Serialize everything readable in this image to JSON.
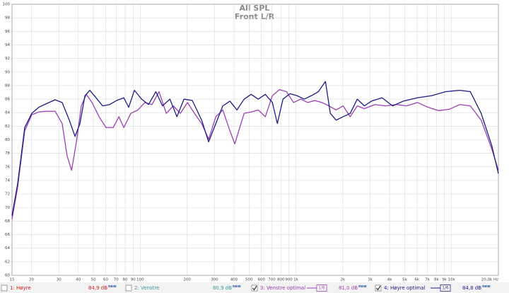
{
  "chart_data": {
    "type": "line",
    "title": "All SPL",
    "subtitle": "Front L/R",
    "xscale": "log",
    "xlim": [
      15,
      20000
    ],
    "ylim": [
      60,
      100
    ],
    "grid": true,
    "xticks": [
      15,
      20,
      30,
      40,
      50,
      60,
      70,
      80,
      90,
      100,
      200,
      300,
      400,
      500,
      600,
      700,
      800,
      900,
      {
        "value": 1000,
        "label": "1k"
      },
      {
        "value": 2000,
        "label": "2k"
      },
      {
        "value": 3000,
        "label": "3k"
      },
      {
        "value": 4000,
        "label": "4k"
      },
      {
        "value": 5000,
        "label": "5k"
      },
      {
        "value": 6000,
        "label": "6k"
      },
      {
        "value": 7000,
        "label": "7k"
      },
      {
        "value": 8000,
        "label": "8k"
      },
      {
        "value": 9000,
        "label": "9k"
      },
      {
        "value": 10000,
        "label": "10k"
      },
      {
        "value": 20000,
        "label": "20,0k Hz"
      }
    ],
    "yticks": [
      60,
      62,
      64,
      66,
      68,
      70,
      72,
      74,
      76,
      78,
      80,
      82,
      84,
      86,
      88,
      90,
      92,
      94,
      96,
      98,
      100
    ],
    "series": [
      {
        "name": "1: Høyre",
        "color": "#d02020",
        "checked": false,
        "level": "84,9 dB",
        "badge": "new"
      },
      {
        "name": "2: Venstre",
        "color": "#3a9aa8",
        "checked": false,
        "level": "80,9 dB",
        "badge": "new"
      },
      {
        "name": "3: Venstre optimal",
        "color": "#9b3fb5",
        "checked": true,
        "smoothing": "1/6",
        "level": "81,0 dB",
        "badge": "new",
        "x": [
          15,
          16.3,
          18.1,
          20.1,
          22.3,
          24.8,
          28.4,
          31.5,
          33.9,
          36.2,
          38.9,
          41.8,
          45.0,
          49.0,
          54.4,
          60.3,
          67.0,
          72.9,
          78.4,
          87,
          96.6,
          107,
          119,
          132,
          147,
          163,
          181,
          201,
          223,
          248,
          275,
          306,
          339,
          377,
          405,
          465,
          516,
          573,
          636,
          706,
          784,
          870,
          966,
          1073,
          1191,
          1323,
          1469,
          1630,
          1812,
          2011,
          2233,
          2480,
          2753,
          3220,
          3768,
          4410,
          5154,
          6038,
          7062,
          8262,
          9666,
          11300,
          13200,
          15500,
          18100,
          20000
        ],
        "values": [
          68.3,
          73.0,
          81.3,
          83.7,
          84.1,
          84.2,
          84.2,
          82.4,
          77.6,
          75.5,
          79.7,
          85.0,
          86.7,
          85.5,
          83.4,
          81.8,
          81.8,
          83.4,
          81.8,
          83.9,
          84.4,
          85.5,
          85.2,
          87.1,
          83.9,
          85.0,
          83.9,
          85.5,
          83.9,
          82.4,
          80.1,
          83.4,
          84.4,
          81.3,
          79.4,
          83.9,
          84.1,
          84.4,
          83.4,
          86.5,
          87.4,
          87.1,
          85.5,
          86.0,
          85.5,
          85.8,
          85.5,
          85.0,
          84.4,
          85.0,
          83.4,
          85.0,
          84.6,
          85.2,
          85.0,
          85.2,
          85.0,
          85.5,
          84.8,
          84.3,
          84.5,
          85.2,
          85.0,
          82.9,
          78.7,
          75.5
        ]
      },
      {
        "name": "4: Høyre optimal",
        "color": "#1c1c82",
        "checked": true,
        "smoothing": "1/6",
        "level": "84,8 dB",
        "badge": "new",
        "x": [
          15,
          16.3,
          18.1,
          20.1,
          22.3,
          24.8,
          28.4,
          31.5,
          35.0,
          38.1,
          41.0,
          44.1,
          47.4,
          51.6,
          57.3,
          63.6,
          70.6,
          78.4,
          84.3,
          91.7,
          102,
          113,
          126,
          139,
          155,
          172,
          191,
          216,
          248,
          275,
          306,
          339,
          377,
          418,
          465,
          516,
          573,
          636,
          706,
          760,
          826,
          917,
          1018,
          1131,
          1256,
          1394,
          1548,
          1664,
          1812,
          2011,
          2233,
          2480,
          2753,
          3056,
          3576,
          4181,
          4896,
          6038,
          7437,
          9165,
          11300,
          13200,
          15500,
          18100,
          20000
        ],
        "values": [
          68.8,
          73.5,
          81.8,
          83.9,
          84.8,
          85.3,
          85.9,
          85.5,
          82.9,
          80.5,
          82.4,
          86.5,
          87.3,
          86.3,
          85.0,
          85.2,
          85.8,
          86.2,
          84.8,
          87.3,
          86.0,
          85.2,
          87.1,
          85.0,
          86.0,
          83.4,
          86.0,
          85.8,
          82.9,
          79.7,
          82.4,
          85.0,
          85.7,
          84.4,
          86.0,
          86.7,
          86.0,
          86.7,
          85.5,
          82.4,
          86.0,
          86.8,
          86.5,
          86.0,
          86.5,
          87.1,
          88.6,
          83.9,
          82.9,
          83.4,
          83.9,
          86.0,
          85.0,
          85.7,
          86.2,
          85.0,
          85.7,
          86.2,
          86.5,
          87.1,
          87.3,
          87.1,
          83.9,
          79.2,
          75.0
        ]
      }
    ]
  }
}
